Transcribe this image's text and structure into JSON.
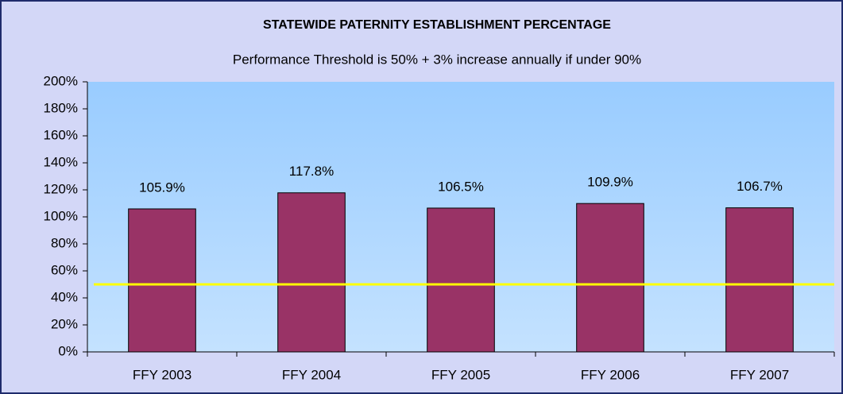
{
  "chart_data": {
    "type": "bar",
    "title": "STATEWIDE PATERNITY ESTABLISHMENT PERCENTAGE",
    "subtitle": "Performance Threshold is 50% + 3% increase annually if under 90%",
    "categories": [
      "FFY 2003",
      "FFY 2004",
      "FFY 2005",
      "FFY 2006",
      "FFY 2007"
    ],
    "values": [
      105.9,
      117.8,
      106.5,
      109.9,
      106.7
    ],
    "value_labels": [
      "105.9%",
      "117.8%",
      "106.5%",
      "109.9%",
      "106.7%"
    ],
    "color": "#993366",
    "threshold": 50,
    "threshold_color": "#ffff00",
    "ylim": [
      0,
      200
    ],
    "yticks": [
      {
        "value": 0,
        "label": "0%"
      },
      {
        "value": 20,
        "label": "20%"
      },
      {
        "value": 40,
        "label": "40%"
      },
      {
        "value": 60,
        "label": "60%"
      },
      {
        "value": 80,
        "label": "80%"
      },
      {
        "value": 100,
        "label": "100%"
      },
      {
        "value": 120,
        "label": "120%"
      },
      {
        "value": 140,
        "label": "140%"
      },
      {
        "value": 160,
        "label": "160%"
      },
      {
        "value": 180,
        "label": "180%"
      },
      {
        "value": 200,
        "label": "200%"
      }
    ]
  }
}
